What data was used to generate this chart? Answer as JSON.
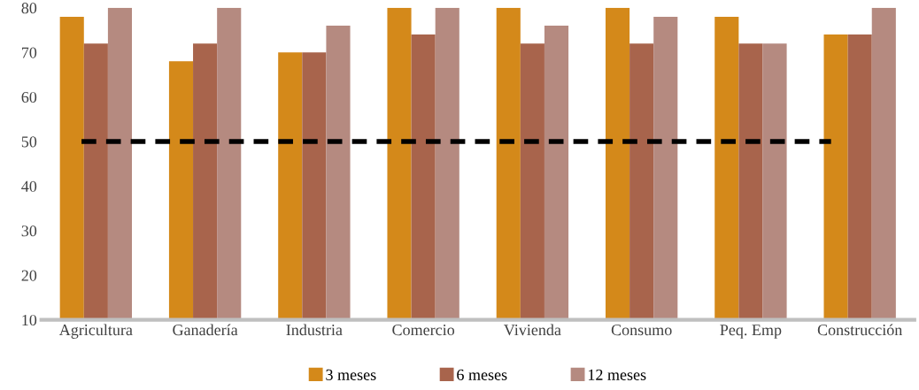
{
  "chart_data": {
    "type": "bar",
    "categories": [
      "Agricultura",
      "Ganadería",
      "Industria",
      "Comercio",
      "Vivienda",
      "Consumo",
      "Peq. Emp",
      "Construcción"
    ],
    "series": [
      {
        "name": "3 meses",
        "color": "#d4891a",
        "values": [
          78,
          68,
          70,
          80,
          80,
          80,
          78,
          74
        ]
      },
      {
        "name": "6 meses",
        "color": "#a8644c",
        "values": [
          72,
          72,
          70,
          74,
          72,
          72,
          72,
          74
        ]
      },
      {
        "name": "12 meses",
        "color": "#b58a80",
        "values": [
          80,
          80,
          76,
          80,
          76,
          78,
          72,
          80
        ]
      }
    ],
    "ylim": [
      10,
      80
    ],
    "yticks": [
      10,
      20,
      30,
      40,
      50,
      60,
      70,
      80
    ],
    "ref_lines": [
      {
        "axis": "y",
        "value": 50,
        "color": "#000000",
        "line_style": "dashed"
      }
    ],
    "grid": false,
    "legend": "bottom"
  }
}
